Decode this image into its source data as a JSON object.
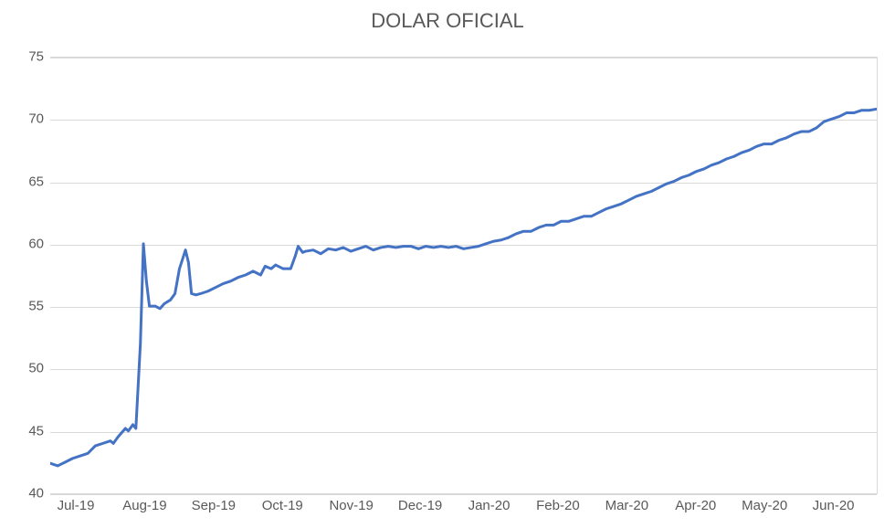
{
  "chart": {
    "type": "line",
    "title": "DOLAR OFICIAL",
    "title_fontsize": 22,
    "title_color": "#595959",
    "background_color": "#ffffff",
    "plot_background_color": "#ffffff",
    "grid_color": "#d9d9d9",
    "axis_label_color": "#595959",
    "axis_label_fontsize": 15,
    "y_axis": {
      "min": 40,
      "max": 75,
      "tick_step": 5,
      "ticks": [
        40,
        45,
        50,
        55,
        60,
        65,
        70,
        75
      ]
    },
    "x_axis": {
      "labels": [
        "Jul-19",
        "Aug-19",
        "Sep-19",
        "Oct-19",
        "Nov-19",
        "Dec-19",
        "Jan-20",
        "Feb-20",
        "Mar-20",
        "Apr-20",
        "May-20",
        "Jun-20"
      ]
    },
    "series": {
      "name": "Dolar Oficial",
      "line_color": "#4472c4",
      "line_width": 3,
      "data": [
        [
          0,
          42.4
        ],
        [
          0.5,
          42.2
        ],
        [
          1,
          42.5
        ],
        [
          1.5,
          42.8
        ],
        [
          2,
          43.0
        ],
        [
          2.5,
          43.2
        ],
        [
          3,
          43.8
        ],
        [
          3.5,
          44.0
        ],
        [
          4,
          44.2
        ],
        [
          4.2,
          44.0
        ],
        [
          4.5,
          44.5
        ],
        [
          5,
          45.2
        ],
        [
          5.2,
          45.0
        ],
        [
          5.5,
          45.5
        ],
        [
          5.7,
          45.2
        ],
        [
          6,
          52.0
        ],
        [
          6.2,
          60.0
        ],
        [
          6.4,
          57.0
        ],
        [
          6.6,
          55.0
        ],
        [
          7,
          55.0
        ],
        [
          7.3,
          54.8
        ],
        [
          7.6,
          55.2
        ],
        [
          8,
          55.5
        ],
        [
          8.3,
          56.0
        ],
        [
          8.6,
          58.0
        ],
        [
          9,
          59.5
        ],
        [
          9.2,
          58.5
        ],
        [
          9.4,
          56.0
        ],
        [
          9.7,
          55.9
        ],
        [
          10,
          56.0
        ],
        [
          10.5,
          56.2
        ],
        [
          11,
          56.5
        ],
        [
          11.5,
          56.8
        ],
        [
          12,
          57.0
        ],
        [
          12.5,
          57.3
        ],
        [
          13,
          57.5
        ],
        [
          13.5,
          57.8
        ],
        [
          14,
          57.5
        ],
        [
          14.3,
          58.2
        ],
        [
          14.7,
          58.0
        ],
        [
          15,
          58.3
        ],
        [
          15.5,
          58.0
        ],
        [
          16,
          58.0
        ],
        [
          16.3,
          59.0
        ],
        [
          16.5,
          59.8
        ],
        [
          16.8,
          59.3
        ],
        [
          17,
          59.4
        ],
        [
          17.5,
          59.5
        ],
        [
          18,
          59.2
        ],
        [
          18.5,
          59.6
        ],
        [
          19,
          59.5
        ],
        [
          19.5,
          59.7
        ],
        [
          20,
          59.4
        ],
        [
          20.5,
          59.6
        ],
        [
          21,
          59.8
        ],
        [
          21.5,
          59.5
        ],
        [
          22,
          59.7
        ],
        [
          22.5,
          59.8
        ],
        [
          23,
          59.7
        ],
        [
          23.5,
          59.8
        ],
        [
          24,
          59.8
        ],
        [
          24.5,
          59.6
        ],
        [
          25,
          59.8
        ],
        [
          25.5,
          59.7
        ],
        [
          26,
          59.8
        ],
        [
          26.5,
          59.7
        ],
        [
          27,
          59.8
        ],
        [
          27.5,
          59.6
        ],
        [
          28,
          59.7
        ],
        [
          28.5,
          59.8
        ],
        [
          29,
          60.0
        ],
        [
          29.5,
          60.2
        ],
        [
          30,
          60.3
        ],
        [
          30.5,
          60.5
        ],
        [
          31,
          60.8
        ],
        [
          31.5,
          61.0
        ],
        [
          32,
          61.0
        ],
        [
          32.5,
          61.3
        ],
        [
          33,
          61.5
        ],
        [
          33.5,
          61.5
        ],
        [
          34,
          61.8
        ],
        [
          34.5,
          61.8
        ],
        [
          35,
          62.0
        ],
        [
          35.5,
          62.2
        ],
        [
          36,
          62.2
        ],
        [
          36.5,
          62.5
        ],
        [
          37,
          62.8
        ],
        [
          37.5,
          63.0
        ],
        [
          38,
          63.2
        ],
        [
          38.5,
          63.5
        ],
        [
          39,
          63.8
        ],
        [
          39.5,
          64.0
        ],
        [
          40,
          64.2
        ],
        [
          40.5,
          64.5
        ],
        [
          41,
          64.8
        ],
        [
          41.5,
          65.0
        ],
        [
          42,
          65.3
        ],
        [
          42.5,
          65.5
        ],
        [
          43,
          65.8
        ],
        [
          43.5,
          66.0
        ],
        [
          44,
          66.3
        ],
        [
          44.5,
          66.5
        ],
        [
          45,
          66.8
        ],
        [
          45.5,
          67.0
        ],
        [
          46,
          67.3
        ],
        [
          46.5,
          67.5
        ],
        [
          47,
          67.8
        ],
        [
          47.5,
          68.0
        ],
        [
          48,
          68.0
        ],
        [
          48.5,
          68.3
        ],
        [
          49,
          68.5
        ],
        [
          49.5,
          68.8
        ],
        [
          50,
          69.0
        ],
        [
          50.5,
          69.0
        ],
        [
          51,
          69.3
        ],
        [
          51.5,
          69.8
        ],
        [
          52,
          70.0
        ],
        [
          52.5,
          70.2
        ],
        [
          53,
          70.5
        ],
        [
          53.5,
          70.5
        ],
        [
          54,
          70.7
        ],
        [
          54.5,
          70.7
        ],
        [
          55,
          70.8
        ]
      ],
      "x_range": [
        0,
        55
      ]
    }
  }
}
